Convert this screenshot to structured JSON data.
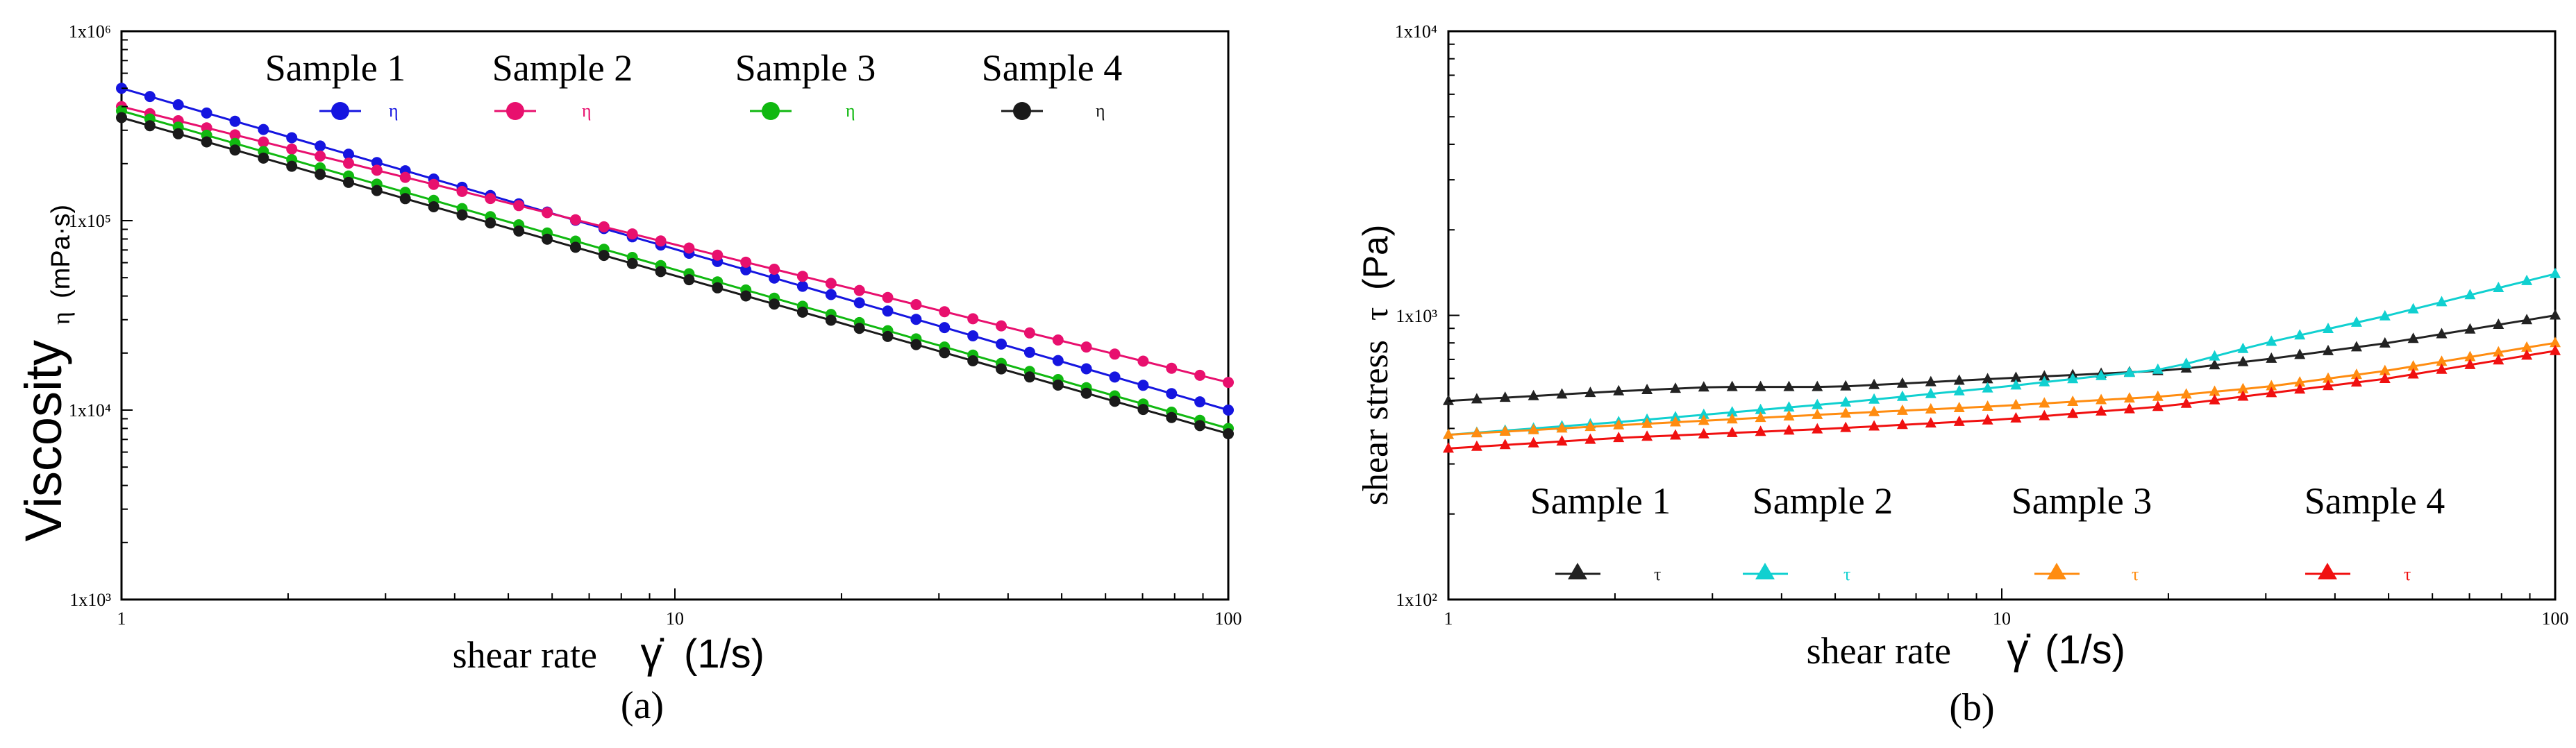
{
  "chart_data": [
    {
      "panel": "(a)",
      "type": "line",
      "xscale": "log",
      "yscale": "log",
      "xlim": [
        1,
        100
      ],
      "ylim": [
        1000,
        1000000
      ],
      "x_ticks": [
        1,
        10,
        100
      ],
      "x_tick_labels": [
        "1",
        "10",
        "100"
      ],
      "y_ticks": [
        1000,
        10000,
        100000,
        1000000
      ],
      "y_tick_labels": [
        "1x10³",
        "1x10⁴",
        "1x10⁵",
        "1x10⁶"
      ],
      "xlabel": "shear rate",
      "xlabel_symbol": "γ̇",
      "xlabel_unit": "(1/s)",
      "ylabel": "Viscosity",
      "ylabel_symbol": "η",
      "ylabel_unit": "(mPa·s)",
      "marker": "circle",
      "points_per_series": 40,
      "series": [
        {
          "name": "Sample 1",
          "symbol": "η",
          "color": "#1515e0",
          "x_start": 1,
          "y_start": 500000,
          "x_end": 100,
          "y_end": 10000
        },
        {
          "name": "Sample 2",
          "symbol": "η",
          "color": "#e8106e",
          "x_start": 1,
          "y_start": 400000,
          "x_end": 100,
          "y_end": 14000
        },
        {
          "name": "Sample 3",
          "symbol": "η",
          "color": "#10b810",
          "x_start": 1,
          "y_start": 380000,
          "x_end": 100,
          "y_end": 8000
        },
        {
          "name": "Sample 4",
          "symbol": "η",
          "color": "#1a1a1a",
          "x_start": 1,
          "y_start": 350000,
          "x_end": 100,
          "y_end": 7500
        }
      ]
    },
    {
      "panel": "(b)",
      "type": "line",
      "xscale": "log",
      "yscale": "log",
      "xlim": [
        1,
        100
      ],
      "ylim": [
        100,
        10000
      ],
      "x_ticks": [
        1,
        10,
        100
      ],
      "x_tick_labels": [
        "1",
        "10",
        "100"
      ],
      "y_ticks": [
        100,
        1000,
        10000
      ],
      "y_tick_labels": [
        "1x10²",
        "1x10³",
        "1x10⁴"
      ],
      "xlabel": "shear rate",
      "xlabel_symbol": "γ̇",
      "xlabel_unit": "(1/s)",
      "ylabel": "shear stress",
      "ylabel_symbol": "τ",
      "ylabel_unit": "(Pa)",
      "marker": "triangle",
      "points_per_series": 40,
      "series": [
        {
          "name": "Sample 1",
          "symbol": "τ",
          "color": "#222222",
          "x": [
            1,
            2,
            3,
            5,
            10,
            20,
            30,
            50,
            100
          ],
          "y": [
            500,
            540,
            560,
            560,
            600,
            640,
            700,
            800,
            1000
          ]
        },
        {
          "name": "Sample 2",
          "symbol": "τ",
          "color": "#10d0d0",
          "x": [
            1,
            2,
            5,
            10,
            20,
            30,
            50,
            100
          ],
          "y": [
            380,
            420,
            490,
            560,
            650,
            800,
            1000,
            1400
          ]
        },
        {
          "name": "Sample 3",
          "symbol": "τ",
          "color": "#ff8c10",
          "x": [
            1,
            2,
            5,
            10,
            20,
            30,
            50,
            100
          ],
          "y": [
            380,
            410,
            450,
            480,
            520,
            560,
            640,
            800
          ]
        },
        {
          "name": "Sample 4",
          "symbol": "τ",
          "color": "#f01010",
          "x": [
            1,
            2,
            5,
            10,
            20,
            30,
            50,
            100
          ],
          "y": [
            340,
            370,
            400,
            430,
            480,
            530,
            600,
            750
          ]
        }
      ]
    }
  ]
}
